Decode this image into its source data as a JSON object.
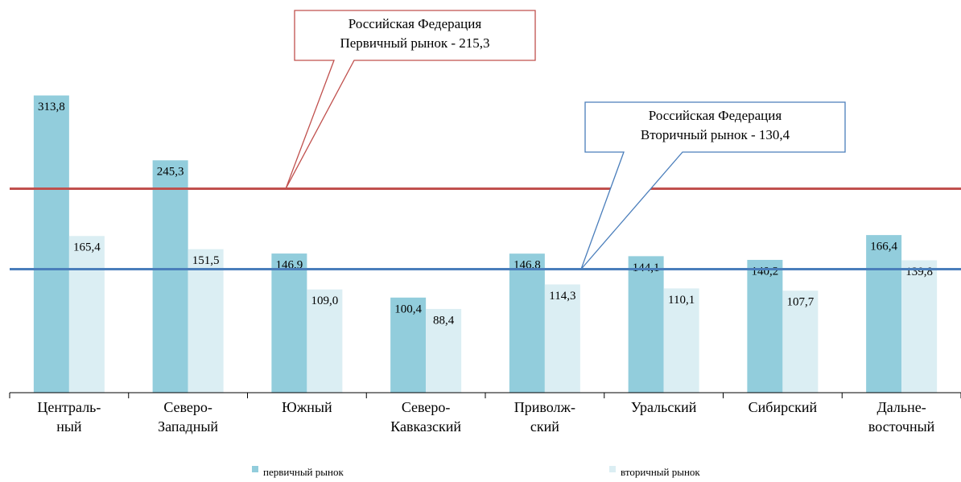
{
  "chart_data": {
    "type": "bar",
    "categories": [
      [
        "Централь-",
        "ный"
      ],
      [
        "Северо-",
        "Западный"
      ],
      [
        "Южный"
      ],
      [
        "Северо-",
        "Кавказский"
      ],
      [
        "Приволж-",
        "ский"
      ],
      [
        "Уральский"
      ],
      [
        "Сибирский"
      ],
      [
        "Дальне-",
        "восточный"
      ]
    ],
    "series": [
      {
        "name": "первичный рынок",
        "color": "#92cddc",
        "values": [
          313.8,
          245.3,
          146.9,
          100.4,
          146.8,
          144.1,
          140.2,
          166.4
        ],
        "value_labels": [
          "313,8",
          "245,3",
          "146,9",
          "100,4",
          "146,8",
          "144,1",
          "140,2",
          "166,4"
        ]
      },
      {
        "name": "вторичный рынок",
        "color": "#dbeef3",
        "values": [
          165.4,
          151.5,
          109.0,
          88.4,
          114.3,
          110.1,
          107.7,
          139.8
        ],
        "value_labels": [
          "165,4",
          "151,5",
          "109,0",
          "88,4",
          "114,3",
          "110,1",
          "107,7",
          "139,8"
        ]
      }
    ],
    "ylim": [
      0,
      350
    ],
    "reference_lines": [
      {
        "value": 215.3,
        "color": "#c0504d",
        "label": [
          "Российская Федерация",
          "Первичный рынок - 215,3"
        ]
      },
      {
        "value": 130.4,
        "color": "#4a7ebb",
        "label": [
          "Российская Федерация",
          "Вторичный рынок - 130,4"
        ]
      }
    ]
  }
}
